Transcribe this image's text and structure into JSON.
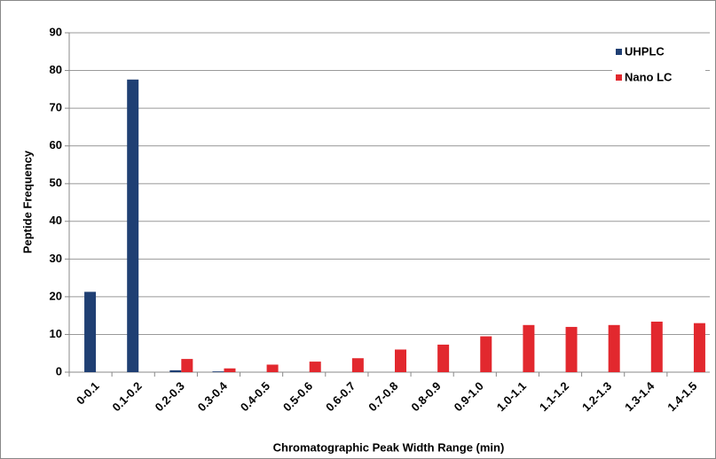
{
  "chart_data": {
    "type": "bar",
    "x_label": "Chromatographic Peak Width Range (min)",
    "y_label": "Peptide Frequency",
    "categories": [
      "0-0.1",
      "0.1-0.2",
      "0.2-0.3",
      "0.3-0.4",
      "0.4-0.5",
      "0.5-0.6",
      "0.6-0.7",
      "0.7-0.8",
      "0.8-0.9",
      "0.9-1.0",
      "1.0-1.1",
      "1.1-1.2",
      "1.2-1.3",
      "1.3-1.4",
      "1.4-1.5"
    ],
    "series": [
      {
        "name": "UHPLC",
        "color": "#1f3f73",
        "values": [
          21.3,
          77.6,
          0.5,
          0.2,
          0,
          0,
          0,
          0,
          0,
          0,
          0,
          0,
          0,
          0,
          0
        ]
      },
      {
        "name": "Nano LC",
        "color": "#e2282e",
        "values": [
          0,
          0,
          3.5,
          1,
          2,
          2.8,
          3.7,
          6,
          7.3,
          9.5,
          12.5,
          12,
          12.5,
          13.4,
          13
        ]
      }
    ],
    "ylim": [
      0,
      90
    ],
    "yticks": [
      0,
      10,
      20,
      30,
      40,
      50,
      60,
      70,
      80,
      90
    ],
    "grid": true,
    "legend": "top-right"
  }
}
